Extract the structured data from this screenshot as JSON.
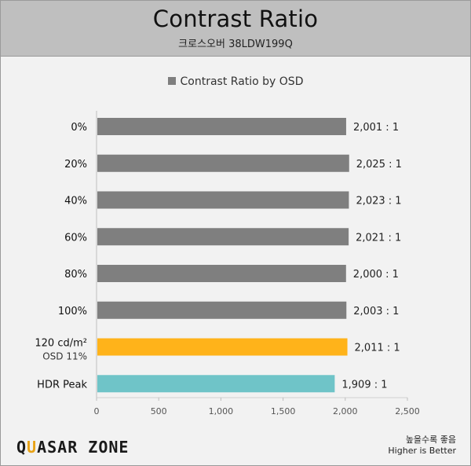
{
  "header": {
    "title": "Contrast Ratio",
    "subtitle": "크로스오버 38LDW199Q"
  },
  "logo": {
    "part1": "Q",
    "accent": "U",
    "part2": "ASAR ZONE"
  },
  "footer_note": {
    "line1": "높을수록 좋음",
    "line2": "Higher is Better"
  },
  "chart_data": {
    "type": "bar",
    "orientation": "horizontal",
    "legend": "Contrast Ratio by OSD",
    "categories": [
      "0%",
      "20%",
      "40%",
      "60%",
      "80%",
      "100%",
      "120 cd/m²|OSD 11%",
      "HDR Peak"
    ],
    "values": [
      2001,
      2025,
      2023,
      2021,
      2000,
      2003,
      2011,
      1909
    ],
    "value_labels": [
      "2,001 : 1",
      "2,025 : 1",
      "2,023 : 1",
      "2,021 : 1",
      "2,000 : 1",
      "2,003 : 1",
      "2,011 : 1",
      "1,909 : 1"
    ],
    "bar_colors": [
      "#7f7f7f",
      "#7f7f7f",
      "#7f7f7f",
      "#7f7f7f",
      "#7f7f7f",
      "#7f7f7f",
      "#ffb31a",
      "#6fc4c8"
    ],
    "xlim": [
      0,
      2500
    ],
    "xticks": [
      0,
      500,
      1000,
      1500,
      2000,
      2500
    ],
    "xtick_labels": [
      "0",
      "500",
      "1,000",
      "1,500",
      "2,000",
      "2,500"
    ],
    "grid": false,
    "legend_position": "top-center"
  }
}
